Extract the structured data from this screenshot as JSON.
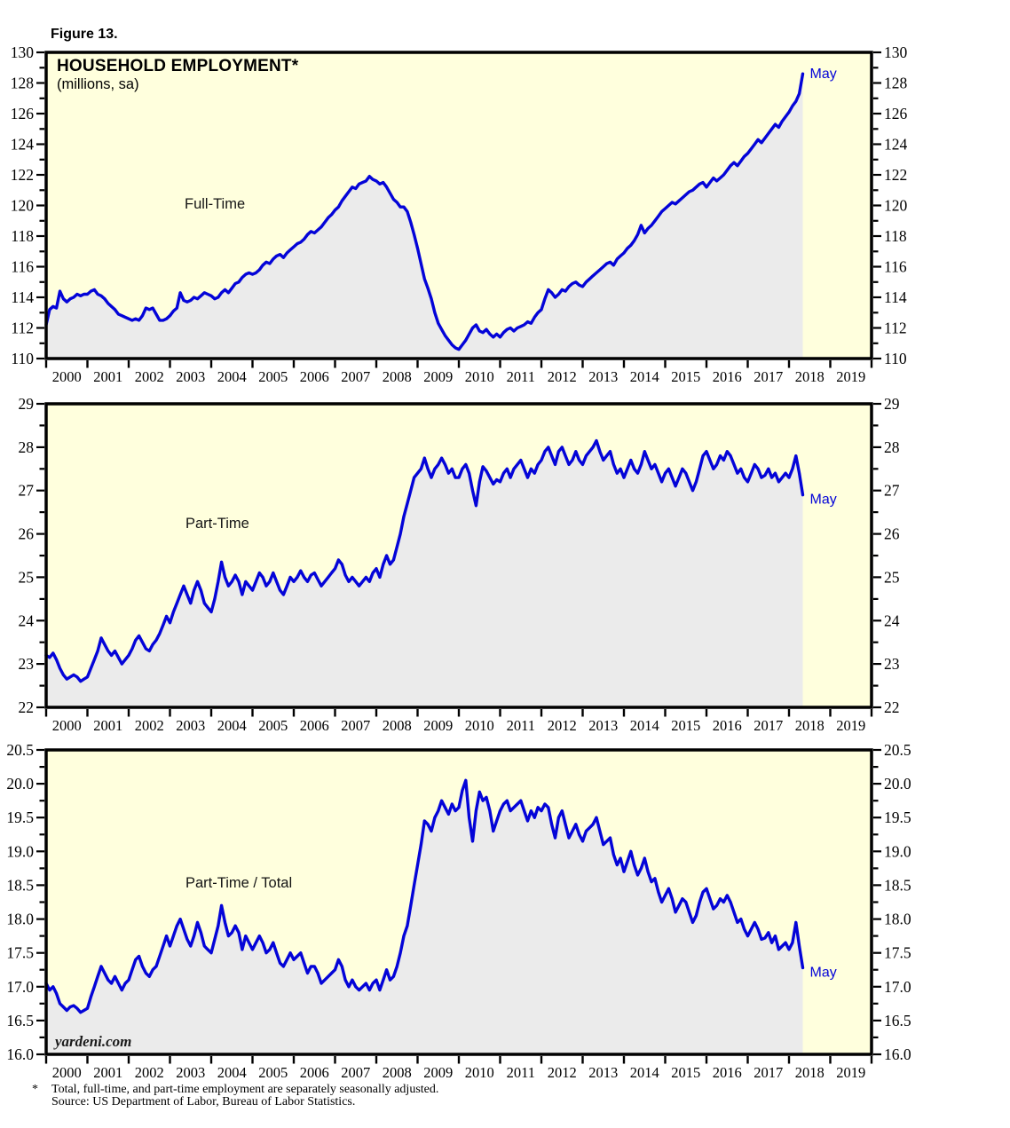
{
  "figure_label": "Figure 13.",
  "title": "HOUSEHOLD EMPLOYMENT*",
  "subtitle": "(millions, sa)",
  "watermark": "yardeni.com",
  "footnote": {
    "marker": "*",
    "line1": "Total, full-time, and part-time employment are separately seasonally adjusted.",
    "line2": "Source: US Department of Labor, Bureau of Labor Statistics."
  },
  "colors": {
    "plot_background": "#FFFFDD",
    "area_fill": "#EBEBEB",
    "line": "#0404D8",
    "axis": "#000000",
    "tick_label": "#000000",
    "end_label": "#0404D8"
  },
  "x_axis": {
    "xlim": [
      2000,
      2020
    ],
    "tick_years": [
      2000,
      2001,
      2002,
      2003,
      2004,
      2005,
      2006,
      2007,
      2008,
      2009,
      2010,
      2011,
      2012,
      2013,
      2014,
      2015,
      2016,
      2017,
      2018,
      2019
    ]
  },
  "chart_data": [
    {
      "type": "area",
      "series_label": "Full-Time",
      "end_label": "May",
      "ylim": [
        110,
        130
      ],
      "ytick_major": 2,
      "ytick_minor": 1,
      "y_decimals": 0,
      "frequency": "monthly",
      "x_start": "2000-01",
      "x_end": "2018-05",
      "values": [
        112.2,
        113.2,
        113.4,
        113.3,
        114.4,
        113.9,
        113.7,
        113.9,
        114.0,
        114.2,
        114.1,
        114.2,
        114.2,
        114.4,
        114.5,
        114.2,
        114.1,
        113.9,
        113.6,
        113.4,
        113.2,
        112.9,
        112.8,
        112.7,
        112.6,
        112.5,
        112.6,
        112.5,
        112.8,
        113.3,
        113.2,
        113.3,
        112.9,
        112.5,
        112.5,
        112.6,
        112.8,
        113.1,
        113.3,
        114.3,
        113.8,
        113.7,
        113.8,
        114.0,
        113.9,
        114.1,
        114.3,
        114.2,
        114.1,
        113.9,
        114.0,
        114.3,
        114.5,
        114.3,
        114.6,
        114.9,
        115.0,
        115.3,
        115.5,
        115.6,
        115.5,
        115.6,
        115.8,
        116.1,
        116.3,
        116.2,
        116.5,
        116.7,
        116.8,
        116.6,
        116.9,
        117.1,
        117.3,
        117.5,
        117.6,
        117.8,
        118.1,
        118.3,
        118.2,
        118.4,
        118.6,
        118.9,
        119.2,
        119.4,
        119.7,
        119.9,
        120.3,
        120.6,
        120.9,
        121.2,
        121.1,
        121.4,
        121.5,
        121.6,
        121.9,
        121.7,
        121.6,
        121.4,
        121.5,
        121.2,
        120.8,
        120.4,
        120.2,
        119.9,
        119.9,
        119.6,
        118.9,
        118.1,
        117.2,
        116.2,
        115.2,
        114.6,
        113.9,
        113.0,
        112.3,
        111.9,
        111.5,
        111.2,
        110.9,
        110.7,
        110.6,
        110.9,
        111.2,
        111.6,
        112.0,
        112.2,
        111.8,
        111.7,
        111.9,
        111.6,
        111.4,
        111.6,
        111.4,
        111.7,
        111.9,
        112.0,
        111.8,
        112.0,
        112.1,
        112.2,
        112.4,
        112.3,
        112.7,
        113.0,
        113.2,
        113.9,
        114.5,
        114.3,
        114.0,
        114.2,
        114.5,
        114.4,
        114.7,
        114.9,
        115.0,
        114.8,
        114.7,
        115.0,
        115.2,
        115.4,
        115.6,
        115.8,
        116.0,
        116.2,
        116.3,
        116.1,
        116.5,
        116.7,
        116.9,
        117.2,
        117.4,
        117.7,
        118.1,
        118.7,
        118.2,
        118.5,
        118.7,
        119.0,
        119.3,
        119.6,
        119.8,
        120.0,
        120.2,
        120.1,
        120.3,
        120.5,
        120.7,
        120.9,
        121.0,
        121.2,
        121.4,
        121.5,
        121.2,
        121.5,
        121.8,
        121.6,
        121.8,
        122.0,
        122.3,
        122.6,
        122.8,
        122.6,
        122.9,
        123.2,
        123.4,
        123.7,
        124.0,
        124.3,
        124.1,
        124.4,
        124.7,
        125.0,
        125.3,
        125.1,
        125.5,
        125.8,
        126.1,
        126.5,
        126.8,
        127.3,
        128.6
      ]
    },
    {
      "type": "area",
      "series_label": "Part-Time",
      "end_label": "May",
      "ylim": [
        22,
        29
      ],
      "ytick_major": 1,
      "ytick_minor": 0.5,
      "y_decimals": 0,
      "frequency": "monthly",
      "x_start": "2000-01",
      "x_end": "2018-05",
      "values": [
        23.2,
        23.15,
        23.25,
        23.1,
        22.9,
        22.75,
        22.65,
        22.7,
        22.75,
        22.7,
        22.6,
        22.65,
        22.7,
        22.9,
        23.1,
        23.3,
        23.6,
        23.45,
        23.3,
        23.2,
        23.3,
        23.15,
        23.0,
        23.1,
        23.2,
        23.35,
        23.55,
        23.65,
        23.5,
        23.35,
        23.3,
        23.45,
        23.55,
        23.7,
        23.9,
        24.1,
        23.95,
        24.2,
        24.4,
        24.6,
        24.8,
        24.6,
        24.4,
        24.7,
        24.9,
        24.7,
        24.4,
        24.3,
        24.2,
        24.5,
        24.9,
        25.35,
        25.0,
        24.8,
        24.9,
        25.05,
        24.9,
        24.6,
        24.9,
        24.8,
        24.7,
        24.9,
        25.1,
        25.0,
        24.8,
        24.9,
        25.1,
        24.9,
        24.7,
        24.6,
        24.8,
        25.0,
        24.9,
        25.0,
        25.15,
        25.0,
        24.9,
        25.05,
        25.1,
        24.95,
        24.8,
        24.9,
        25.0,
        25.1,
        25.2,
        25.4,
        25.3,
        25.05,
        24.9,
        25.0,
        24.9,
        24.8,
        24.9,
        25.0,
        24.9,
        25.1,
        25.2,
        25.0,
        25.3,
        25.5,
        25.3,
        25.4,
        25.7,
        26.0,
        26.4,
        26.7,
        27.0,
        27.3,
        27.4,
        27.5,
        27.75,
        27.5,
        27.3,
        27.5,
        27.6,
        27.75,
        27.6,
        27.4,
        27.5,
        27.3,
        27.3,
        27.5,
        27.6,
        27.4,
        27.0,
        26.65,
        27.2,
        27.55,
        27.45,
        27.3,
        27.15,
        27.25,
        27.2,
        27.4,
        27.5,
        27.3,
        27.5,
        27.6,
        27.7,
        27.5,
        27.3,
        27.5,
        27.4,
        27.6,
        27.7,
        27.9,
        28.0,
        27.8,
        27.6,
        27.9,
        28.0,
        27.8,
        27.6,
        27.7,
        27.9,
        27.7,
        27.6,
        27.8,
        27.9,
        28.0,
        28.15,
        27.9,
        27.7,
        27.8,
        27.9,
        27.6,
        27.4,
        27.5,
        27.3,
        27.5,
        27.7,
        27.5,
        27.4,
        27.6,
        27.9,
        27.7,
        27.5,
        27.6,
        27.4,
        27.2,
        27.4,
        27.5,
        27.3,
        27.1,
        27.3,
        27.5,
        27.4,
        27.2,
        27.0,
        27.2,
        27.5,
        27.8,
        27.9,
        27.7,
        27.5,
        27.6,
        27.8,
        27.7,
        27.9,
        27.8,
        27.6,
        27.4,
        27.5,
        27.3,
        27.2,
        27.4,
        27.6,
        27.5,
        27.3,
        27.35,
        27.5,
        27.3,
        27.4,
        27.2,
        27.3,
        27.4,
        27.3,
        27.5,
        27.8,
        27.4,
        26.9
      ]
    },
    {
      "type": "area",
      "series_label": "Part-Time / Total",
      "end_label": "May",
      "ylim": [
        16.0,
        20.5
      ],
      "ytick_major": 0.5,
      "ytick_minor": 0.25,
      "y_decimals": 1,
      "frequency": "monthly",
      "x_start": "2000-01",
      "x_end": "2018-05",
      "values": [
        17.05,
        16.95,
        17.0,
        16.9,
        16.75,
        16.7,
        16.65,
        16.7,
        16.72,
        16.68,
        16.62,
        16.65,
        16.68,
        16.85,
        17.0,
        17.15,
        17.3,
        17.2,
        17.1,
        17.05,
        17.15,
        17.05,
        16.95,
        17.05,
        17.1,
        17.25,
        17.4,
        17.45,
        17.3,
        17.2,
        17.15,
        17.25,
        17.3,
        17.45,
        17.6,
        17.75,
        17.6,
        17.75,
        17.9,
        18.0,
        17.85,
        17.7,
        17.6,
        17.75,
        17.95,
        17.8,
        17.6,
        17.55,
        17.5,
        17.7,
        17.9,
        18.2,
        17.95,
        17.75,
        17.8,
        17.9,
        17.8,
        17.55,
        17.75,
        17.65,
        17.55,
        17.65,
        17.75,
        17.65,
        17.5,
        17.55,
        17.65,
        17.5,
        17.35,
        17.3,
        17.4,
        17.5,
        17.4,
        17.45,
        17.5,
        17.35,
        17.2,
        17.3,
        17.3,
        17.2,
        17.05,
        17.1,
        17.15,
        17.2,
        17.25,
        17.4,
        17.3,
        17.1,
        17.0,
        17.1,
        17.0,
        16.95,
        17.0,
        17.05,
        16.95,
        17.05,
        17.1,
        16.95,
        17.1,
        17.25,
        17.1,
        17.15,
        17.3,
        17.5,
        17.75,
        17.9,
        18.2,
        18.5,
        18.8,
        19.1,
        19.45,
        19.4,
        19.3,
        19.5,
        19.6,
        19.75,
        19.65,
        19.55,
        19.7,
        19.6,
        19.65,
        19.9,
        20.05,
        19.5,
        19.15,
        19.6,
        19.88,
        19.75,
        19.8,
        19.6,
        19.3,
        19.45,
        19.6,
        19.7,
        19.75,
        19.6,
        19.65,
        19.7,
        19.75,
        19.6,
        19.45,
        19.6,
        19.5,
        19.65,
        19.6,
        19.7,
        19.65,
        19.4,
        19.2,
        19.5,
        19.6,
        19.4,
        19.2,
        19.3,
        19.4,
        19.25,
        19.15,
        19.3,
        19.35,
        19.4,
        19.5,
        19.3,
        19.1,
        19.15,
        19.2,
        18.95,
        18.8,
        18.9,
        18.7,
        18.85,
        19.0,
        18.8,
        18.65,
        18.75,
        18.9,
        18.7,
        18.55,
        18.6,
        18.4,
        18.25,
        18.35,
        18.45,
        18.3,
        18.1,
        18.2,
        18.3,
        18.25,
        18.1,
        17.95,
        18.05,
        18.25,
        18.4,
        18.45,
        18.3,
        18.15,
        18.2,
        18.3,
        18.25,
        18.35,
        18.25,
        18.1,
        17.95,
        18.0,
        17.85,
        17.75,
        17.85,
        17.95,
        17.85,
        17.7,
        17.72,
        17.8,
        17.65,
        17.75,
        17.55,
        17.6,
        17.65,
        17.55,
        17.65,
        17.95,
        17.6,
        17.28
      ]
    }
  ]
}
